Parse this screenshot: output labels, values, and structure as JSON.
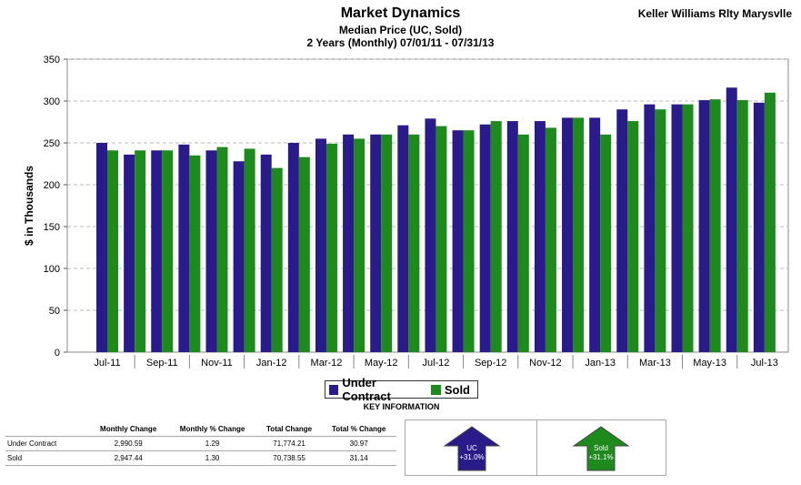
{
  "header": {
    "title": "Market Dynamics",
    "subtitle": "Median Price (UC, Sold)",
    "range": "2 Years (Monthly) 07/01/11 - 07/31/13",
    "brand": "Keller Williams Rlty Marysvlle"
  },
  "colors": {
    "under_contract": "#2a1b8a",
    "sold": "#1e8a1e",
    "grid": "#b8b8b8"
  },
  "chart_data": {
    "type": "bar",
    "title": "Market Dynamics",
    "ylabel": "$ in Thousands",
    "xlabel": "",
    "ylim": [
      0,
      350
    ],
    "yticks": [
      0,
      50,
      100,
      150,
      200,
      250,
      300,
      350
    ],
    "grid": true,
    "categories": [
      "Jul-11",
      "Aug-11",
      "Sep-11",
      "Oct-11",
      "Nov-11",
      "Dec-11",
      "Jan-12",
      "Feb-12",
      "Mar-12",
      "Apr-12",
      "May-12",
      "Jun-12",
      "Jul-12",
      "Aug-12",
      "Sep-12",
      "Oct-12",
      "Nov-12",
      "Dec-12",
      "Jan-13",
      "Feb-13",
      "Mar-13",
      "Apr-13",
      "May-13",
      "Jun-13",
      "Jul-13"
    ],
    "tick_labels": [
      "Jul-11",
      "Sep-11",
      "Nov-11",
      "Jan-12",
      "Mar-12",
      "May-12",
      "Jul-12",
      "Sep-12",
      "Nov-12",
      "Jan-13",
      "Mar-13",
      "May-13",
      "Jul-13"
    ],
    "series": [
      {
        "name": "Under Contract",
        "values": [
          250,
          236,
          241,
          248,
          241,
          228,
          236,
          250,
          255,
          260,
          260,
          271,
          279,
          265,
          272,
          276,
          276,
          280,
          280,
          290,
          296,
          296,
          301,
          316,
          298
        ]
      },
      {
        "name": "Sold",
        "values": [
          241,
          241,
          241,
          235,
          245,
          243,
          220,
          233,
          249,
          255,
          260,
          260,
          270,
          265,
          276,
          260,
          268,
          280,
          260,
          276,
          290,
          296,
          302,
          301,
          310
        ]
      }
    ],
    "legend_position": "bottom"
  },
  "key_info": {
    "label": "KEY INFORMATION",
    "columns": [
      "",
      "Monthly Change",
      "Monthly % Change",
      "Total Change",
      "Total % Change"
    ],
    "rows": [
      [
        "Under Contract",
        "2,990.59",
        "1.29",
        "71,774.21",
        "30.97"
      ],
      [
        "Sold",
        "2,947.44",
        "1.30",
        "70,738.55",
        "31.14"
      ]
    ],
    "uc_arrow": {
      "label": "UC",
      "value": "+31.0%"
    },
    "sold_arrow": {
      "label": "Sold",
      "value": "+31.1%"
    }
  }
}
